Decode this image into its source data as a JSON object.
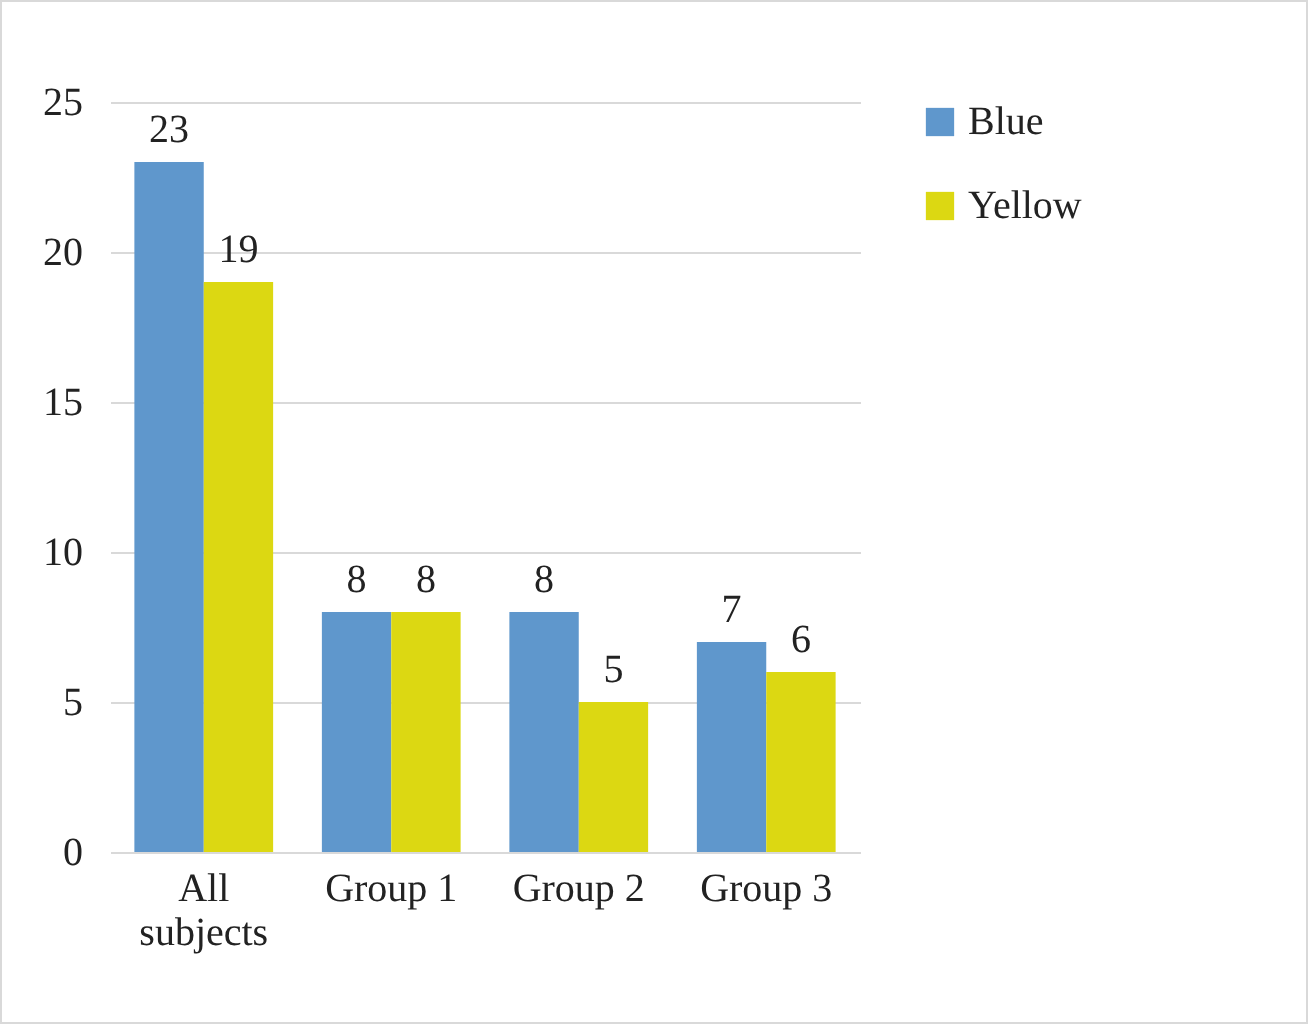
{
  "chart_data": {
    "type": "bar",
    "categories": [
      "All subjects",
      "Group 1",
      "Group 2",
      "Group 3"
    ],
    "series": [
      {
        "name": "Blue",
        "color": "#5f97cc",
        "values": [
          23,
          8,
          8,
          7
        ]
      },
      {
        "name": "Yellow",
        "color": "#dcd812",
        "values": [
          19,
          8,
          5,
          6
        ]
      }
    ],
    "ylim": [
      0,
      25
    ],
    "yticks": [
      0,
      5,
      10,
      15,
      20,
      25
    ],
    "grid": "y",
    "legend": "right",
    "data_labels": true
  }
}
